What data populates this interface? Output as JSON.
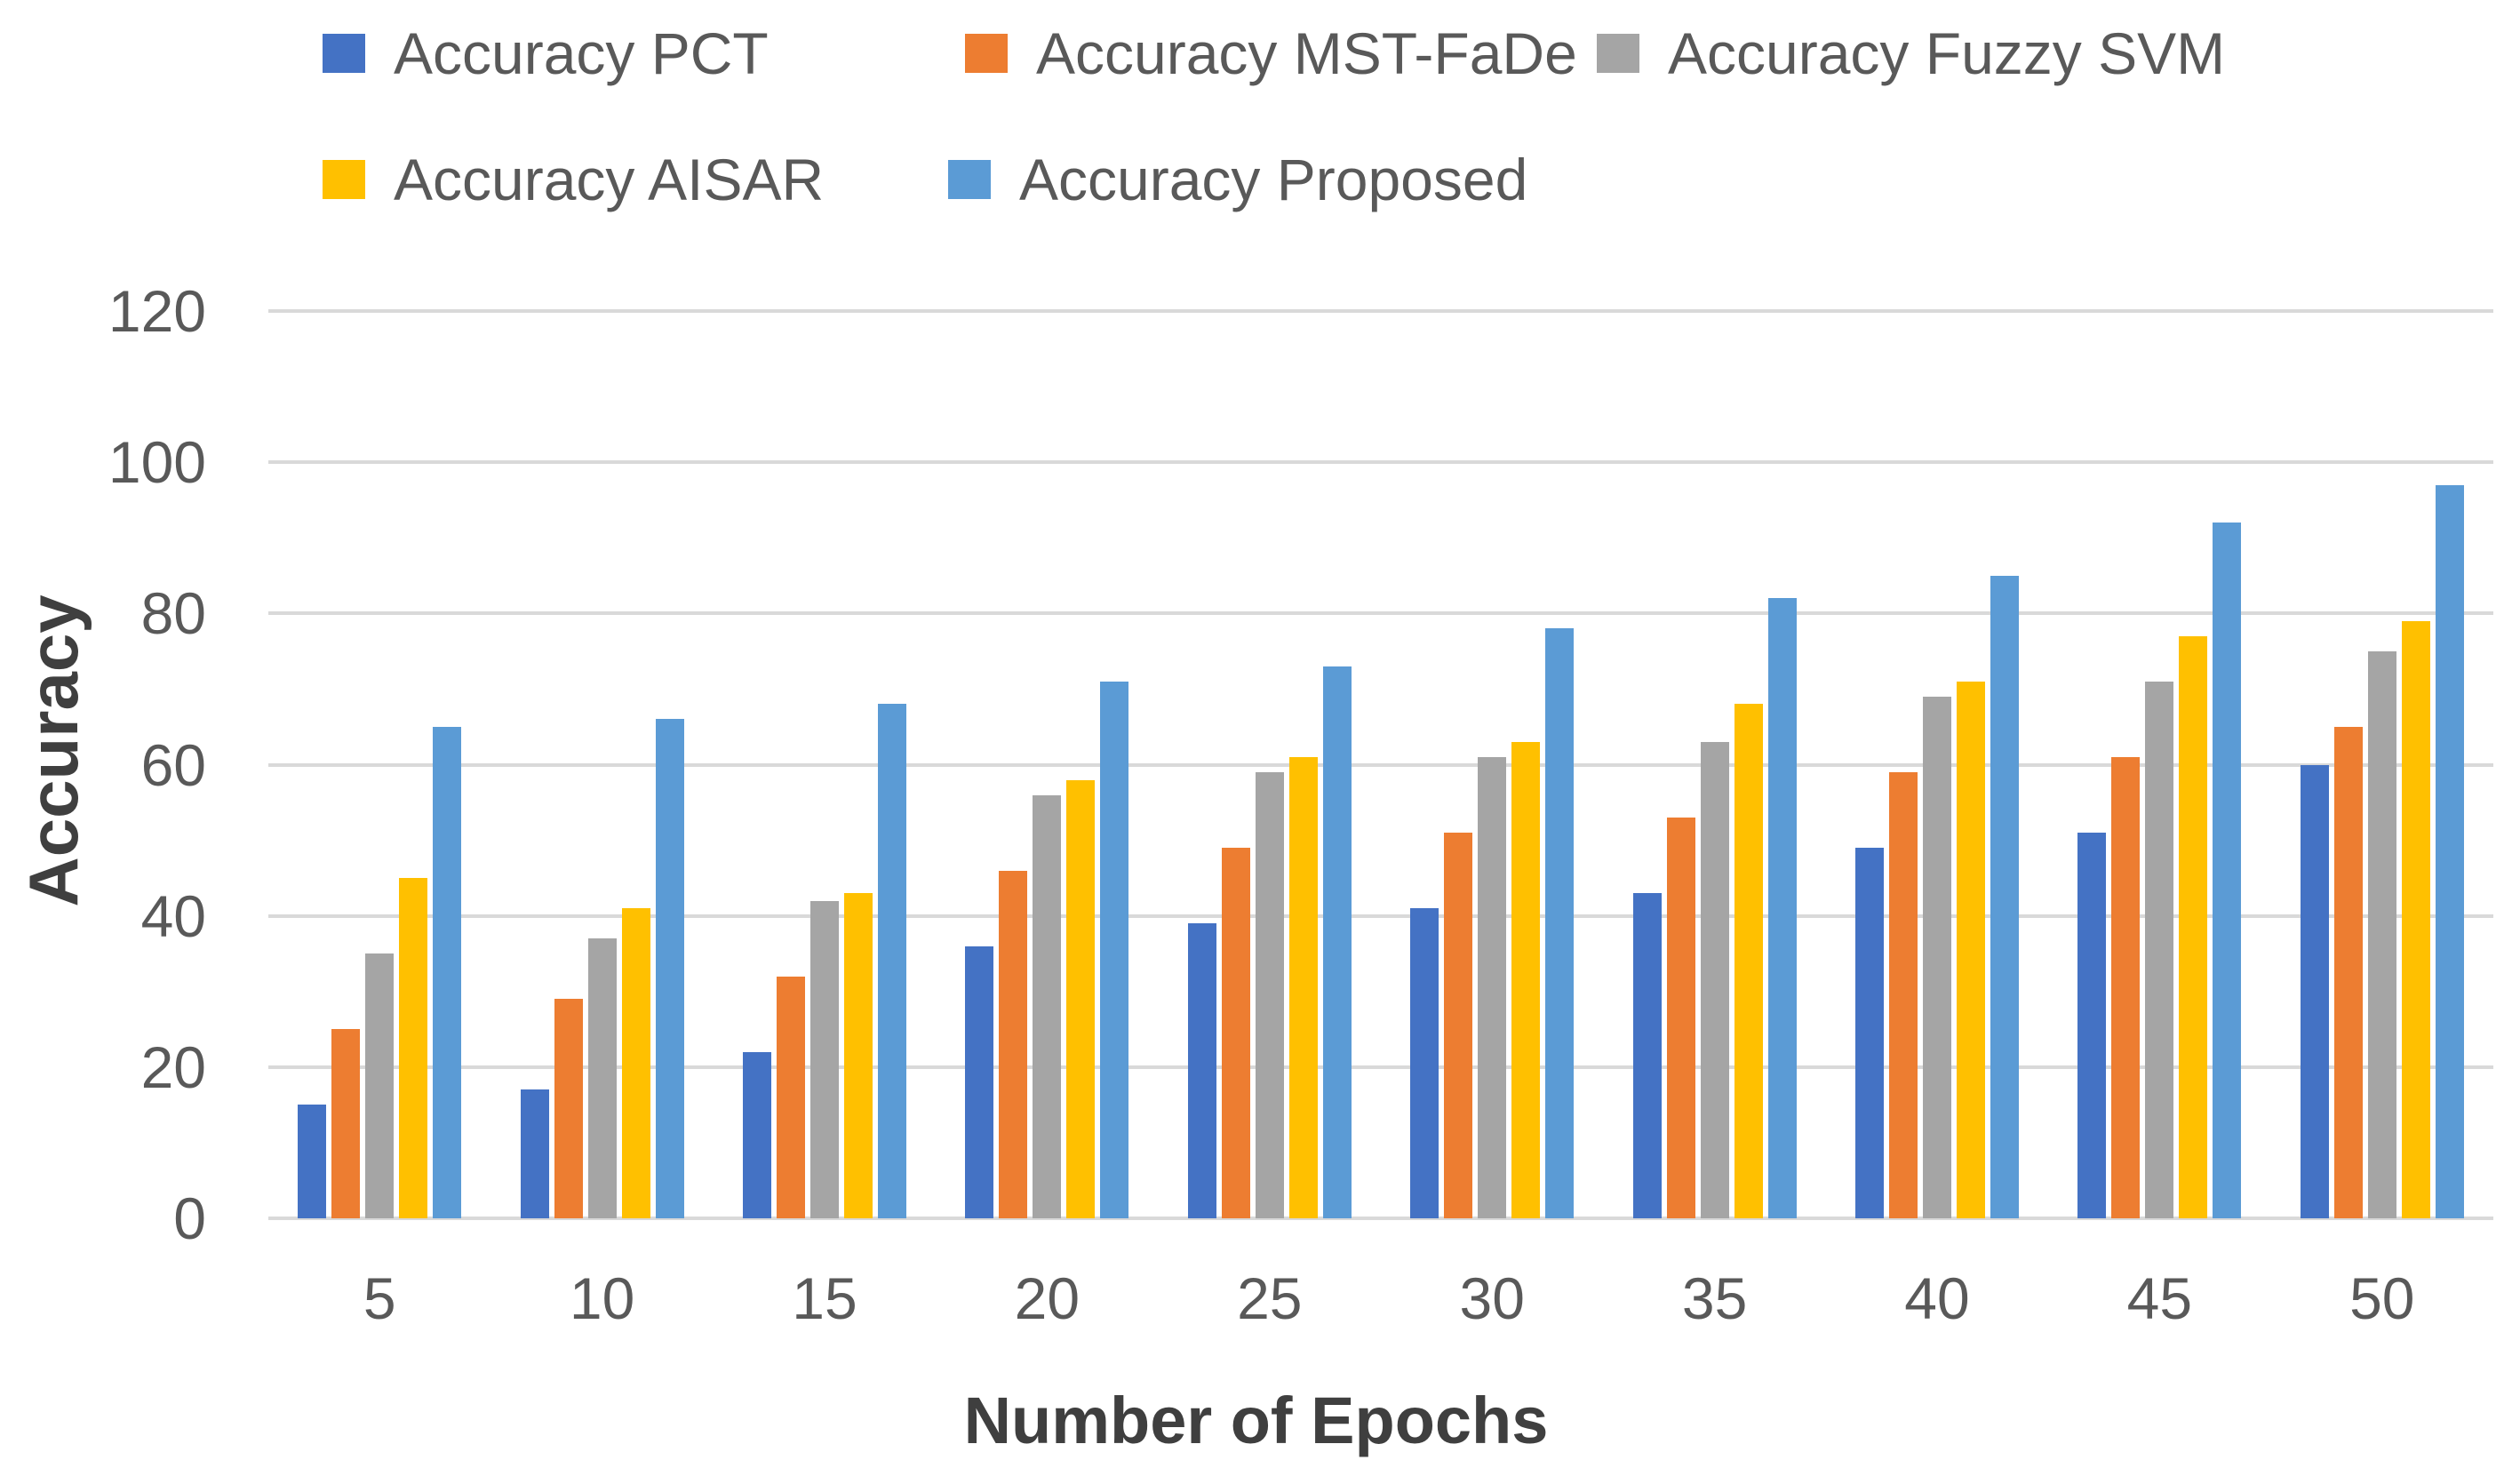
{
  "chart_data": {
    "type": "bar",
    "title": "",
    "xlabel": "Number of Epochs",
    "ylabel": "Accuracy",
    "categories": [
      "5",
      "10",
      "15",
      "20",
      "25",
      "30",
      "35",
      "40",
      "45",
      "50"
    ],
    "series": [
      {
        "name": "Accuracy PCT",
        "color": "#4472C4",
        "values": [
          15,
          17,
          22,
          36,
          39,
          41,
          43,
          49,
          51,
          60
        ]
      },
      {
        "name": "Accuracy MST-FaDe",
        "color": "#ED7D31",
        "values": [
          25,
          29,
          32,
          46,
          49,
          51,
          53,
          59,
          61,
          65
        ]
      },
      {
        "name": "Accuracy Fuzzy SVM",
        "color": "#A5A5A5",
        "values": [
          35,
          37,
          42,
          56,
          59,
          61,
          63,
          69,
          71,
          75
        ]
      },
      {
        "name": "Accuracy AISAR",
        "color": "#FFC000",
        "values": [
          45,
          41,
          43,
          58,
          61,
          63,
          68,
          71,
          77,
          79
        ]
      },
      {
        "name": "Accuracy Proposed",
        "color": "#5B9BD5",
        "values": [
          65,
          66,
          68,
          71,
          73,
          78,
          82,
          85,
          92,
          97
        ]
      }
    ],
    "y_ticks": [
      0,
      20,
      40,
      60,
      80,
      100,
      120
    ],
    "ylim": [
      0,
      120
    ],
    "grid": true,
    "gridline_color": "#D9D9D9",
    "tick_text_color": "#595959",
    "axis_title_color": "#3F3F3F",
    "legend_position": "top"
  }
}
